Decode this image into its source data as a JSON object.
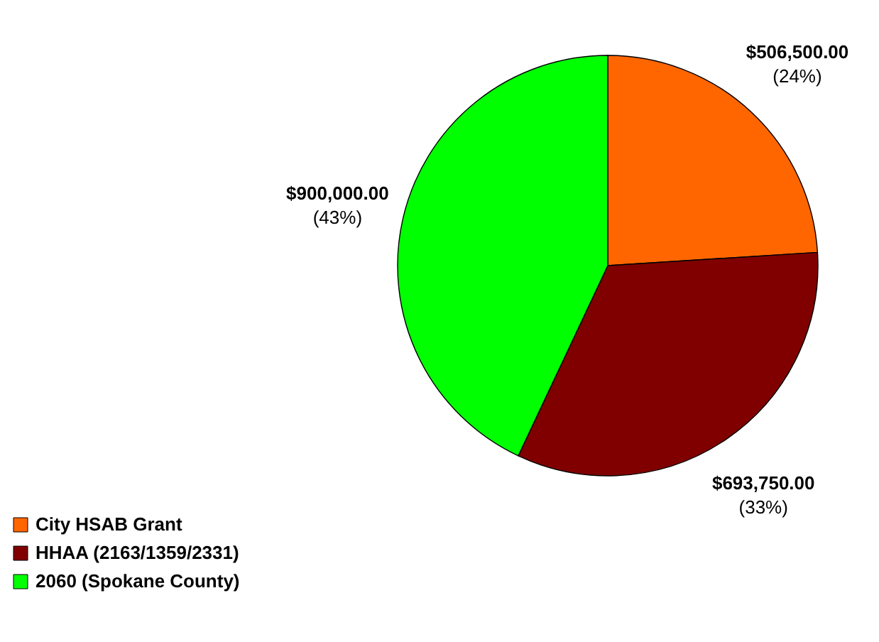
{
  "chart_data": {
    "type": "pie",
    "categories": [
      "City HSAB Grant",
      "HHAA (2163/1359/2331)",
      "2060 (Spokane County)"
    ],
    "values": [
      24,
      33,
      43
    ],
    "colors": [
      "#ff6600",
      "#800000",
      "#00ff00"
    ],
    "value_labels": [
      "$506,500.00\n(24%)",
      "$693,750.00\n(33%)",
      "$900,000.00\n(43%)"
    ],
    "legend": "bottom left"
  }
}
